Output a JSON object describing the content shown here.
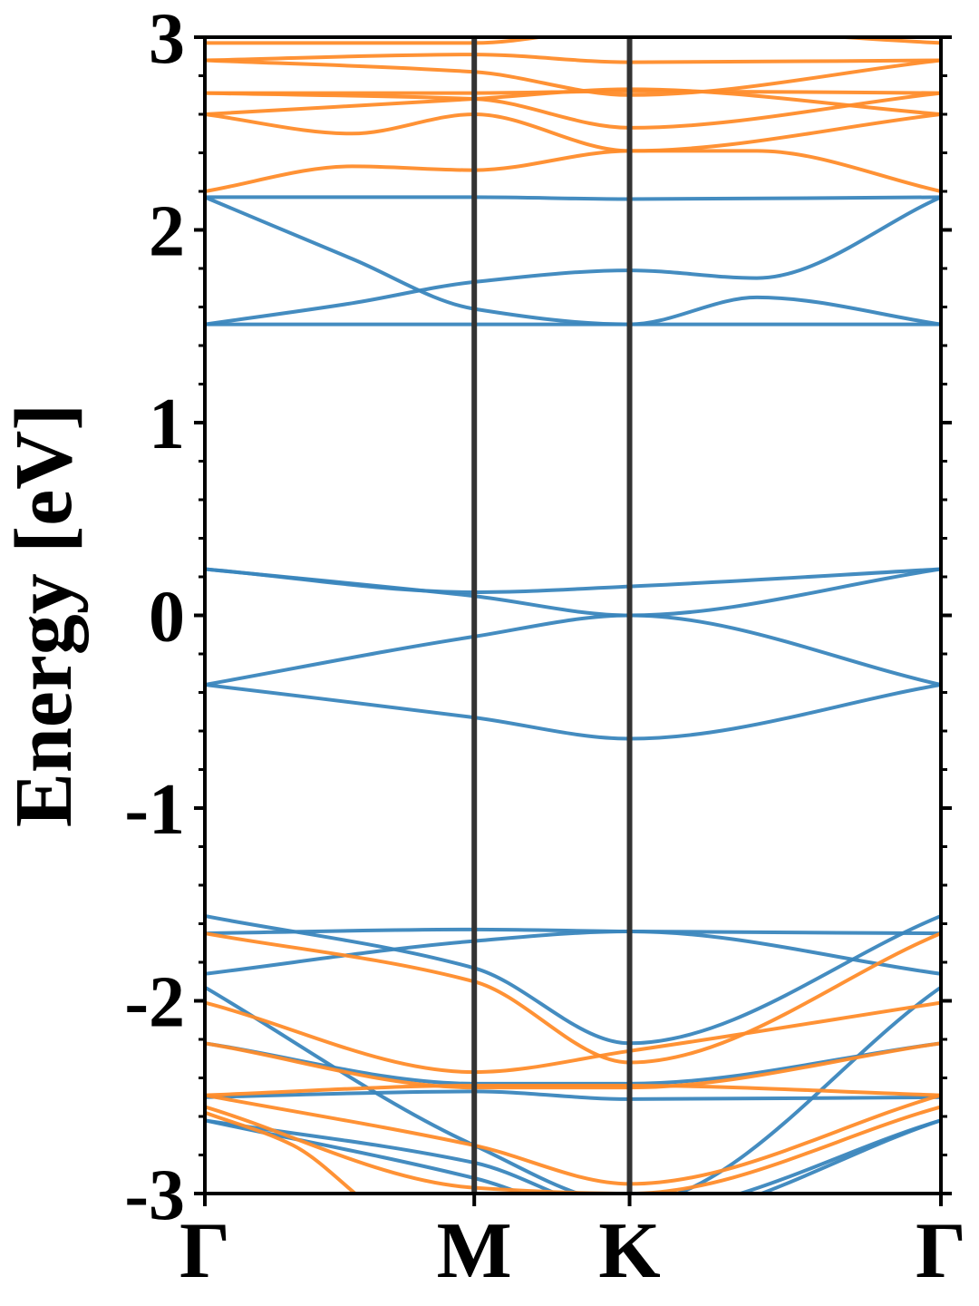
{
  "chart_data": {
    "type": "line",
    "title": "",
    "xlabel": "",
    "ylabel": "Energy [eV]",
    "ylim": [
      -3,
      3
    ],
    "xlim": [
      0,
      1
    ],
    "grid": false,
    "legend": "none",
    "y_ticks": [
      "3",
      "2",
      "1",
      "0",
      "-1",
      "-2",
      "-3"
    ],
    "y_tick_values": [
      3,
      2,
      1,
      0,
      -1,
      -2,
      -3
    ],
    "k_points": [
      {
        "label": "Γ",
        "x": 0.0
      },
      {
        "label": "M",
        "x": 0.366
      },
      {
        "label": "K",
        "x": 0.577
      },
      {
        "label": "Γ",
        "x": 1.0
      }
    ],
    "colors": {
      "blue": "#3a86bd",
      "orange": "#ff8c2a",
      "kline": "#333333"
    },
    "series": [
      {
        "color": "blue",
        "x": [
          0,
          0.366,
          0.577,
          1
        ],
        "y": [
          0.24,
          0.1,
          0.0,
          0.24
        ]
      },
      {
        "color": "blue",
        "x": [
          0,
          0.366,
          0.577,
          1
        ],
        "y": [
          0.24,
          0.12,
          0.15,
          0.24
        ]
      },
      {
        "color": "blue",
        "x": [
          0,
          0.366,
          0.577,
          1
        ],
        "y": [
          -0.36,
          -0.11,
          0.0,
          -0.36
        ]
      },
      {
        "color": "blue",
        "x": [
          0,
          0.366,
          0.577,
          1
        ],
        "y": [
          -0.36,
          -0.53,
          -0.64,
          -0.36
        ]
      },
      {
        "color": "blue",
        "x": [
          0,
          0.366,
          0.577,
          1
        ],
        "y": [
          2.17,
          2.17,
          2.16,
          2.17
        ]
      },
      {
        "color": "blue",
        "x": [
          0,
          0.2,
          0.366,
          0.577,
          0.75,
          1
        ],
        "y": [
          2.17,
          1.85,
          1.59,
          1.51,
          1.65,
          1.51
        ]
      },
      {
        "color": "blue",
        "x": [
          0,
          0.2,
          0.366,
          0.577,
          0.75,
          1
        ],
        "y": [
          1.51,
          1.62,
          1.73,
          1.79,
          1.75,
          2.17
        ]
      },
      {
        "color": "blue",
        "x": [
          0,
          0.366,
          0.577,
          1
        ],
        "y": [
          1.51,
          1.51,
          1.51,
          1.51
        ]
      },
      {
        "color": "blue",
        "x": [
          0,
          0.366,
          0.577,
          1
        ],
        "y": [
          -1.56,
          -1.83,
          -2.22,
          -1.56
        ]
      },
      {
        "color": "blue",
        "x": [
          0,
          0.366,
          0.577,
          1
        ],
        "y": [
          -1.65,
          -1.63,
          -1.64,
          -1.65
        ]
      },
      {
        "color": "blue",
        "x": [
          0,
          0.366,
          0.577,
          1
        ],
        "y": [
          -1.86,
          -1.69,
          -1.64,
          -1.86
        ]
      },
      {
        "color": "blue",
        "x": [
          0,
          0.366,
          0.577,
          1
        ],
        "y": [
          -1.93,
          -2.75,
          -3.05,
          -1.93
        ]
      },
      {
        "color": "blue",
        "x": [
          0,
          0.366,
          0.577,
          1
        ],
        "y": [
          -2.22,
          -2.43,
          -2.43,
          -2.22
        ]
      },
      {
        "color": "blue",
        "x": [
          0,
          0.366,
          0.577,
          1
        ],
        "y": [
          -2.5,
          -2.47,
          -2.51,
          -2.5
        ]
      },
      {
        "color": "blue",
        "x": [
          0,
          0.366,
          0.577,
          1
        ],
        "y": [
          -2.62,
          -2.84,
          -3.1,
          -2.62
        ]
      },
      {
        "color": "blue",
        "x": [
          0,
          0.366,
          0.577,
          1
        ],
        "y": [
          -2.62,
          -2.92,
          -3.15,
          -2.62
        ]
      },
      {
        "color": "orange",
        "x": [
          0,
          0.366,
          0.577,
          1
        ],
        "y": [
          2.97,
          2.97,
          3.05,
          2.97
        ]
      },
      {
        "color": "orange",
        "x": [
          0,
          0.366,
          0.577,
          1
        ],
        "y": [
          2.88,
          2.91,
          2.87,
          2.88
        ]
      },
      {
        "color": "orange",
        "x": [
          0,
          0.366,
          0.577,
          1
        ],
        "y": [
          2.88,
          2.82,
          2.7,
          2.88
        ]
      },
      {
        "color": "orange",
        "x": [
          0,
          0.366,
          0.577,
          1
        ],
        "y": [
          2.71,
          2.71,
          2.72,
          2.71
        ]
      },
      {
        "color": "orange",
        "x": [
          0,
          0.366,
          0.577,
          1
        ],
        "y": [
          2.71,
          2.68,
          2.53,
          2.71
        ]
      },
      {
        "color": "orange",
        "x": [
          0,
          0.366,
          0.577,
          1
        ],
        "y": [
          2.6,
          2.68,
          2.73,
          2.6
        ]
      },
      {
        "color": "orange",
        "x": [
          0,
          0.2,
          0.366,
          0.577,
          1
        ],
        "y": [
          2.6,
          2.5,
          2.6,
          2.41,
          2.6
        ]
      },
      {
        "color": "orange",
        "x": [
          0,
          0.2,
          0.366,
          0.577,
          0.75,
          1
        ],
        "y": [
          2.2,
          2.33,
          2.31,
          2.41,
          2.41,
          2.2
        ]
      },
      {
        "color": "orange",
        "x": [
          0,
          0.366,
          0.577,
          1
        ],
        "y": [
          -1.65,
          -1.9,
          -2.32,
          -1.65
        ]
      },
      {
        "color": "orange",
        "x": [
          0,
          0.366,
          0.577,
          1
        ],
        "y": [
          -2.01,
          -2.37,
          -2.26,
          -2.01
        ]
      },
      {
        "color": "orange",
        "x": [
          0,
          0.366,
          0.577,
          1
        ],
        "y": [
          -2.22,
          -2.45,
          -2.45,
          -2.22
        ]
      },
      {
        "color": "orange",
        "x": [
          0,
          0.366,
          0.577,
          1
        ],
        "y": [
          -2.49,
          -2.44,
          -2.44,
          -2.49
        ]
      },
      {
        "color": "orange",
        "x": [
          0,
          0.366,
          0.577,
          1
        ],
        "y": [
          -2.49,
          -2.75,
          -2.95,
          -2.49
        ]
      },
      {
        "color": "orange",
        "x": [
          0,
          0.366,
          0.577,
          1
        ],
        "y": [
          -2.55,
          -2.97,
          -3.0,
          -2.55
        ]
      },
      {
        "color": "orange",
        "x": [
          0,
          0.12,
          0.22
        ],
        "y": [
          -2.58,
          -2.75,
          -3.05
        ]
      }
    ]
  }
}
